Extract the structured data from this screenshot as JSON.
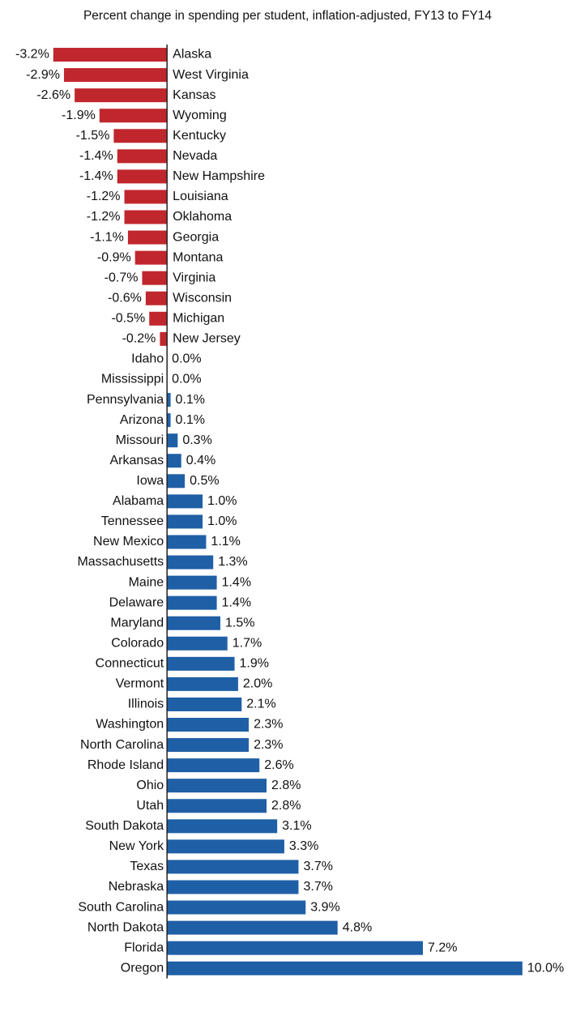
{
  "chart_data": {
    "type": "hbar",
    "title": "Percent change in spending per student, inflation-adjusted, FY13 to FY14",
    "categories": [
      "Alaska",
      "West Virginia",
      "Kansas",
      "Wyoming",
      "Kentucky",
      "Nevada",
      "New Hampshire",
      "Louisiana",
      "Oklahoma",
      "Georgia",
      "Montana",
      "Virginia",
      "Wisconsin",
      "Michigan",
      "New Jersey",
      "Idaho",
      "Mississippi",
      "Pennsylvania",
      "Arizona",
      "Missouri",
      "Arkansas",
      "Iowa",
      "Alabama",
      "Tennessee",
      "New Mexico",
      "Massachusetts",
      "Maine",
      "Delaware",
      "Maryland",
      "Colorado",
      "Connecticut",
      "Vermont",
      "Illinois",
      "Washington",
      "North Carolina",
      "Rhode Island",
      "Ohio",
      "Utah",
      "South Dakota",
      "New York",
      "Texas",
      "Nebraska",
      "South Carolina",
      "North Dakota",
      "Florida",
      "Oregon"
    ],
    "values": [
      -3.2,
      -2.9,
      -2.6,
      -1.9,
      -1.5,
      -1.4,
      -1.4,
      -1.2,
      -1.2,
      -1.1,
      -0.9,
      -0.7,
      -0.6,
      -0.5,
      -0.2,
      0.0,
      0.0,
      0.1,
      0.1,
      0.3,
      0.4,
      0.5,
      1.0,
      1.0,
      1.1,
      1.3,
      1.4,
      1.4,
      1.5,
      1.7,
      1.9,
      2.0,
      2.1,
      2.3,
      2.3,
      2.6,
      2.8,
      2.8,
      3.1,
      3.3,
      3.7,
      3.7,
      3.9,
      4.8,
      7.2,
      10.0
    ],
    "value_labels": [
      "-3.2%",
      "-2.9%",
      "-2.6%",
      "-1.9%",
      "-1.5%",
      "-1.4%",
      "-1.4%",
      "-1.2%",
      "-1.2%",
      "-1.1%",
      "-0.9%",
      "-0.7%",
      "-0.6%",
      "-0.5%",
      "-0.2%",
      "0.0%",
      "0.0%",
      "0.1%",
      "0.1%",
      "0.3%",
      "0.4%",
      "0.5%",
      "1.0%",
      "1.0%",
      "1.1%",
      "1.3%",
      "1.4%",
      "1.4%",
      "1.5%",
      "1.7%",
      "1.9%",
      "2.0%",
      "2.1%",
      "2.3%",
      "2.3%",
      "2.6%",
      "2.8%",
      "2.8%",
      "3.1%",
      "3.3%",
      "3.7%",
      "3.7%",
      "3.9%",
      "4.8%",
      "7.2%",
      "10.0%"
    ],
    "colors": {
      "negative": "#c0272d",
      "positive": "#1f5fa6"
    },
    "xlim": [
      -4.7,
      10.3
    ]
  }
}
